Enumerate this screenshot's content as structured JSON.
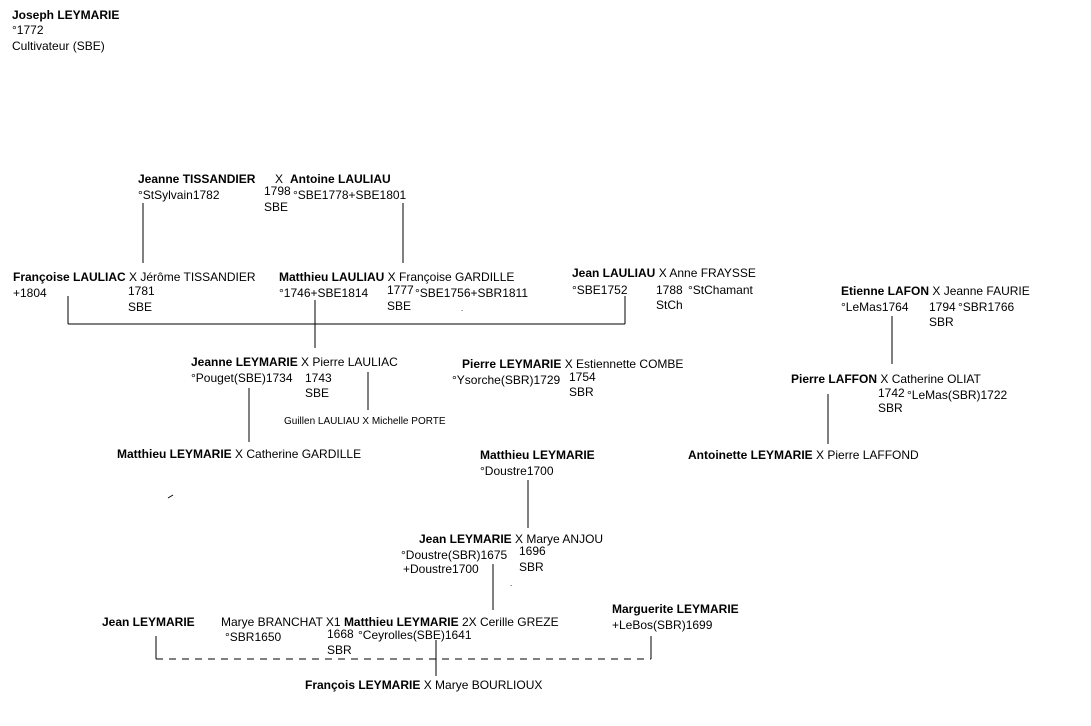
{
  "header": {
    "name": "Joseph LEYMARIE",
    "birth": "°1772",
    "occupation": "Cultivateur (SBE)"
  },
  "couples": {
    "tissandier_lauliau": {
      "wife": "Jeanne TISSANDIER",
      "sep": "X",
      "husband": "Antoine LAULIAU",
      "wife_info": "°StSylvain1782",
      "year": "1798",
      "place": "SBE",
      "husband_info": "°SBE1778+SBE1801"
    },
    "lauliac_tissandier": {
      "wife": "Françoise LAULIAC",
      "rest": "X Jérôme TISSANDIER",
      "wife_info": "+1804",
      "year": "1781",
      "place": "SBE"
    },
    "lauliau_gardille": {
      "husband": "Matthieu LAULIAU",
      "rest": "X Françoise GARDILLE",
      "husband_info": "°1746+SBE1814",
      "year": "1777",
      "wife_info": "°SBE1756+SBR1811",
      "place": "SBE"
    },
    "lauliau_fraysse": {
      "husband": "Jean LAULIAU",
      "rest": "X Anne FRAYSSE",
      "husband_info": "°SBE1752",
      "year": "1788",
      "wife_info": "°StChamant",
      "place": "StCh"
    },
    "lafon_faurie": {
      "husband": "Etienne LAFON",
      "rest": "X Jeanne FAURIE",
      "husband_info": "°LeMas1764",
      "year": "1794",
      "wife_info": "°SBR1766",
      "place": "SBR"
    },
    "leymarie_lauliac": {
      "wife": "Jeanne LEYMARIE",
      "rest": "X Pierre LAULIAC",
      "wife_info": "°Pouget(SBE)1734",
      "year": "1743",
      "place": "SBE"
    },
    "leymarie_combe": {
      "husband": "Pierre LEYMARIE",
      "rest": "X Estiennette COMBE",
      "husband_info": "°Ysorche(SBR)1729",
      "year": "1754",
      "place": "SBR"
    },
    "laffon_oliat": {
      "husband": "Pierre LAFFON",
      "rest": "X Catherine OLIAT",
      "year": "1742",
      "wife_info": "°LeMas(SBR)1722",
      "place": "SBR"
    },
    "lauliau_porte": {
      "text": "Guillen LAULIAU X Michelle PORTE"
    },
    "matthieu_gardille": {
      "husband": "Matthieu LEYMARIE",
      "rest": "X Catherine GARDILLE"
    },
    "matthieu_1700": {
      "name": "Matthieu LEYMARIE",
      "info": "°Doustre1700"
    },
    "antoinette_laffond": {
      "wife": "Antoinette LEYMARIE",
      "rest": "X Pierre LAFFOND"
    },
    "jean_anjou": {
      "husband": "Jean LEYMARIE",
      "rest": "X Marye ANJOU",
      "husband_info1": "°Doustre(SBR)1675",
      "husband_info2": "+Doustre1700",
      "year": "1696",
      "place": "SBR"
    },
    "jean_leymarie": {
      "name": "Jean LEYMARIE"
    },
    "branchat_matthieu_greze": {
      "wife1": "Marye BRANCHAT X1",
      "husband": "Matthieu LEYMARIE",
      "rest": "2X Cerille GREZE",
      "wife1_info": "°SBR1650",
      "year": "1668",
      "husband_info": "°Ceyrolles(SBE)1641",
      "place": "SBR"
    },
    "marguerite": {
      "name": "Marguerite LEYMARIE",
      "info": "+LeBos(SBR)1699"
    },
    "francois_bourlioux": {
      "husband": "François LEYMARIE",
      "rest": "X Marye BOURLIOUX"
    }
  }
}
